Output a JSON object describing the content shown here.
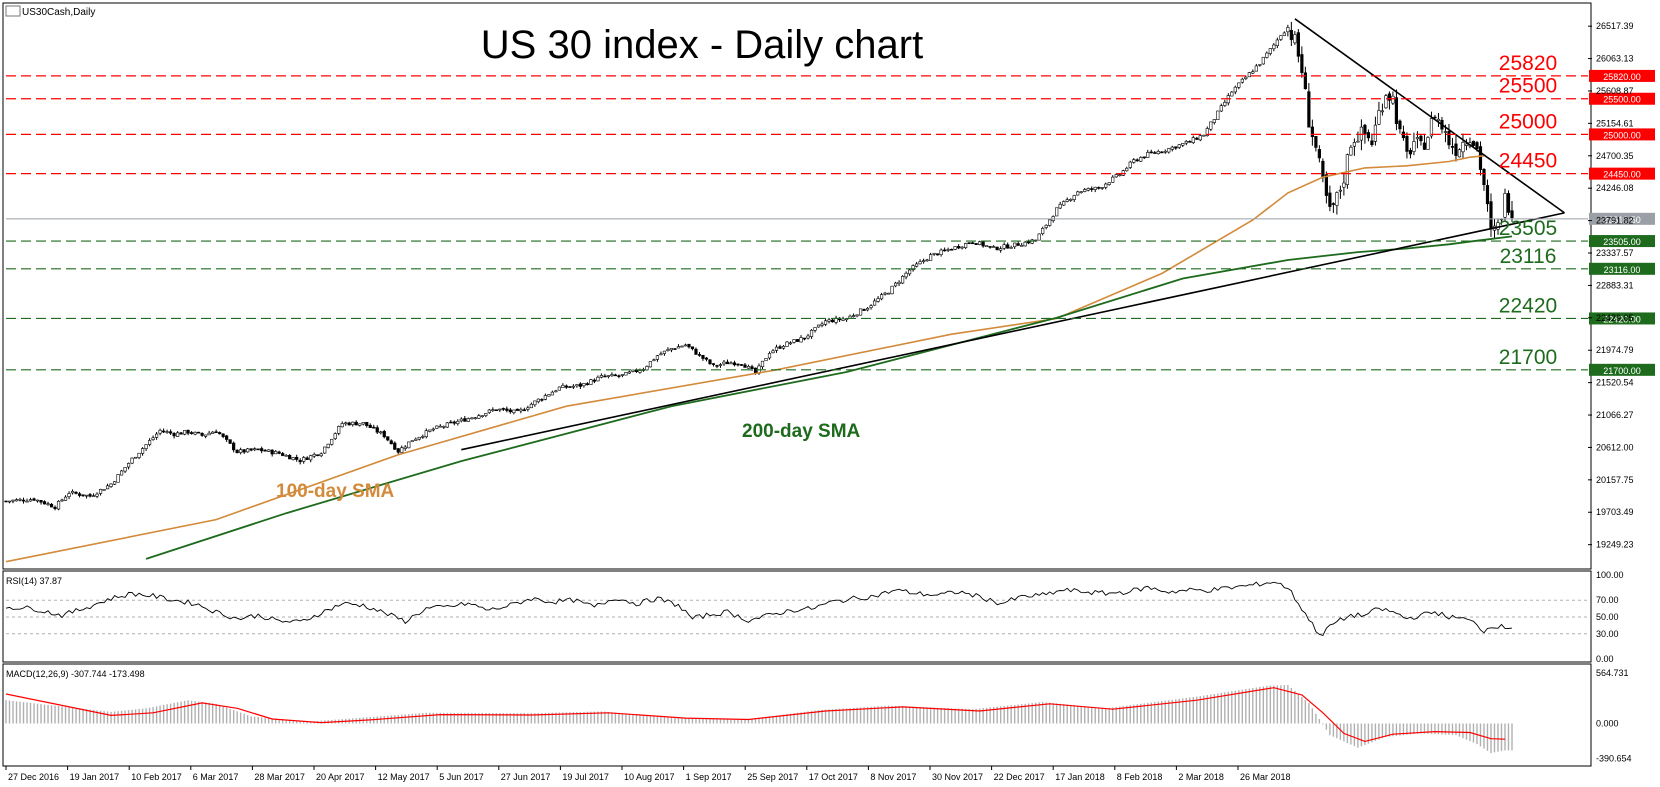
{
  "header": {
    "symbol": "US30Cash,Daily",
    "title": "US 30 index - Daily chart"
  },
  "colors": {
    "bull": "#000000",
    "bear": "#000000",
    "sma100": "#d38a3a",
    "sma200": "#1e6b1e",
    "resistance": "#ff0000",
    "support": "#1e6b1e",
    "macd_signal": "#ff0000",
    "macd_hist": "#b0b0b0"
  },
  "annotations": {
    "sma100_label": "100-day SMA",
    "sma200_label": "200-day SMA"
  },
  "chart_data": [
    {
      "type": "line",
      "name": "price",
      "ylim": [
        18950,
        26800
      ],
      "y_ticks": [
        "26517.39",
        "26063.13",
        "25608.87",
        "25154.61",
        "24700.35",
        "24246.08",
        "23791.82",
        "23337.57",
        "22883.31",
        "22429.05",
        "21974.79",
        "21520.54",
        "21066.27",
        "20612.00",
        "20157.75",
        "19703.49",
        "19249.23"
      ],
      "x_labels": [
        "27 Dec 2016",
        "19 Jan 2017",
        "10 Feb 2017",
        "6 Mar 2017",
        "28 Mar 2017",
        "20 Apr 2017",
        "12 May 2017",
        "5 Jun 2017",
        "27 Jun 2017",
        "19 Jul 2017",
        "10 Aug 2017",
        "1 Sep 2017",
        "25 Sep 2017",
        "17 Oct 2017",
        "8 Nov 2017",
        "30 Nov 2017",
        "22 Dec 2017",
        "17 Jan 2018",
        "8 Feb 2018",
        "2 Mar 2018",
        "26 Mar 2018"
      ],
      "close_path": [
        [
          0,
          19860
        ],
        [
          8,
          19890
        ],
        [
          14,
          19780
        ],
        [
          18,
          19980
        ],
        [
          24,
          19930
        ],
        [
          30,
          20100
        ],
        [
          36,
          20450
        ],
        [
          40,
          20650
        ],
        [
          44,
          20850
        ],
        [
          48,
          20800
        ],
        [
          52,
          20830
        ],
        [
          56,
          20780
        ],
        [
          60,
          20850
        ],
        [
          66,
          20550
        ],
        [
          72,
          20580
        ],
        [
          78,
          20530
        ],
        [
          84,
          20430
        ],
        [
          90,
          20550
        ],
        [
          96,
          20950
        ],
        [
          102,
          20950
        ],
        [
          108,
          20780
        ],
        [
          112,
          20560
        ],
        [
          116,
          20720
        ],
        [
          122,
          20870
        ],
        [
          128,
          20960
        ],
        [
          134,
          21050
        ],
        [
          140,
          21150
        ],
        [
          146,
          21100
        ],
        [
          152,
          21280
        ],
        [
          158,
          21450
        ],
        [
          164,
          21480
        ],
        [
          170,
          21600
        ],
        [
          176,
          21620
        ],
        [
          182,
          21720
        ],
        [
          186,
          21900
        ],
        [
          190,
          22000
        ],
        [
          194,
          22050
        ],
        [
          198,
          21900
        ],
        [
          202,
          21750
        ],
        [
          206,
          21800
        ],
        [
          210,
          21800
        ],
        [
          214,
          21650
        ],
        [
          218,
          21950
        ],
        [
          222,
          22050
        ],
        [
          228,
          22150
        ],
        [
          234,
          22380
        ],
        [
          240,
          22420
        ],
        [
          246,
          22580
        ],
        [
          252,
          22800
        ],
        [
          258,
          23100
        ],
        [
          264,
          23300
        ],
        [
          270,
          23400
        ],
        [
          276,
          23500
        ],
        [
          282,
          23400
        ],
        [
          288,
          23450
        ],
        [
          294,
          23520
        ],
        [
          300,
          23950
        ],
        [
          306,
          24200
        ],
        [
          312,
          24250
        ],
        [
          318,
          24440
        ],
        [
          322,
          24630
        ],
        [
          326,
          24720
        ],
        [
          332,
          24800
        ],
        [
          338,
          24900
        ],
        [
          342,
          25000
        ],
        [
          346,
          25300
        ],
        [
          350,
          25600
        ],
        [
          354,
          25800
        ],
        [
          358,
          26000
        ],
        [
          362,
          26250
        ],
        [
          364,
          26400
        ],
        [
          366,
          26500
        ],
        [
          368,
          26300
        ],
        [
          370,
          25900
        ],
        [
          372,
          25200
        ],
        [
          374,
          24800
        ],
        [
          376,
          24300
        ],
        [
          378,
          23900
        ],
        [
          380,
          24100
        ],
        [
          382,
          24400
        ],
        [
          384,
          24900
        ],
        [
          386,
          25000
        ],
        [
          388,
          25000
        ],
        [
          390,
          24900
        ],
        [
          392,
          25300
        ],
        [
          394,
          25600
        ],
        [
          396,
          25500
        ],
        [
          398,
          25000
        ],
        [
          400,
          24700
        ],
        [
          402,
          24900
        ],
        [
          404,
          24800
        ],
        [
          406,
          25000
        ],
        [
          408,
          25300
        ],
        [
          410,
          25100
        ],
        [
          412,
          24900
        ],
        [
          414,
          24800
        ],
        [
          416,
          24900
        ],
        [
          418,
          25000
        ],
        [
          420,
          24800
        ],
        [
          422,
          24300
        ],
        [
          424,
          23600
        ],
        [
          426,
          23700
        ],
        [
          428,
          24100
        ],
        [
          430,
          23950
        ]
      ],
      "sma100_path": [
        [
          0,
          19010
        ],
        [
          60,
          19600
        ],
        [
          112,
          20510
        ],
        [
          160,
          21190
        ],
        [
          220,
          21700
        ],
        [
          270,
          22200
        ],
        [
          300,
          22420
        ],
        [
          330,
          23050
        ],
        [
          356,
          23800
        ],
        [
          366,
          24180
        ],
        [
          376,
          24400
        ],
        [
          388,
          24530
        ],
        [
          400,
          24560
        ],
        [
          412,
          24620
        ],
        [
          418,
          24680
        ],
        [
          422,
          24700
        ]
      ],
      "sma200_path": [
        [
          40,
          19050
        ],
        [
          80,
          19690
        ],
        [
          130,
          20420
        ],
        [
          190,
          21190
        ],
        [
          240,
          21670
        ],
        [
          300,
          22430
        ],
        [
          336,
          22980
        ],
        [
          366,
          23240
        ],
        [
          386,
          23350
        ],
        [
          400,
          23400
        ],
        [
          412,
          23460
        ],
        [
          420,
          23510
        ],
        [
          430,
          23570
        ]
      ],
      "trend_support": [
        [
          130,
          20580
        ],
        [
          445,
          23900
        ]
      ],
      "trend_resistance": [
        [
          368,
          26620
        ],
        [
          445,
          23900
        ]
      ],
      "resistance_levels": [
        {
          "value": 25820,
          "label": "25820",
          "tag": "25820.00"
        },
        {
          "value": 25500,
          "label": "25500",
          "tag": "25500.00"
        },
        {
          "value": 25000,
          "label": "25000",
          "tag": "25000.00"
        },
        {
          "value": 24450,
          "label": "24450",
          "tag": "24450.00"
        }
      ],
      "support_levels": [
        {
          "value": 23505,
          "label": "23505",
          "tag": "23505.00"
        },
        {
          "value": 23116,
          "label": "23116",
          "tag": "23116.00"
        },
        {
          "value": 22420,
          "label": "22420",
          "tag": "22420.00"
        },
        {
          "value": 21700,
          "label": "21700",
          "tag": "21700.00"
        }
      ],
      "current_price": {
        "value": 23816.5,
        "tag": "23816.50"
      }
    },
    {
      "type": "line",
      "name": "RSI(14)",
      "header": "RSI(14) 37.87",
      "ylim": [
        0,
        100
      ],
      "y_ticks": [
        "100.00",
        "70.00",
        "50.00",
        "30.00",
        "0.00"
      ],
      "levels": [
        70,
        50,
        30
      ],
      "path": [
        [
          0,
          62
        ],
        [
          8,
          60
        ],
        [
          16,
          52
        ],
        [
          22,
          60
        ],
        [
          30,
          72
        ],
        [
          36,
          78
        ],
        [
          42,
          75
        ],
        [
          48,
          70
        ],
        [
          54,
          66
        ],
        [
          60,
          56
        ],
        [
          66,
          48
        ],
        [
          72,
          52
        ],
        [
          78,
          45
        ],
        [
          84,
          44
        ],
        [
          90,
          55
        ],
        [
          96,
          66
        ],
        [
          102,
          64
        ],
        [
          108,
          55
        ],
        [
          114,
          45
        ],
        [
          120,
          60
        ],
        [
          126,
          62
        ],
        [
          132,
          66
        ],
        [
          138,
          58
        ],
        [
          144,
          64
        ],
        [
          150,
          72
        ],
        [
          156,
          68
        ],
        [
          162,
          70
        ],
        [
          168,
          62
        ],
        [
          174,
          73
        ],
        [
          180,
          66
        ],
        [
          186,
          72
        ],
        [
          192,
          64
        ],
        [
          196,
          48
        ],
        [
          200,
          52
        ],
        [
          206,
          56
        ],
        [
          212,
          46
        ],
        [
          218,
          52
        ],
        [
          224,
          58
        ],
        [
          230,
          60
        ],
        [
          236,
          68
        ],
        [
          242,
          72
        ],
        [
          248,
          75
        ],
        [
          254,
          82
        ],
        [
          260,
          78
        ],
        [
          266,
          76
        ],
        [
          272,
          80
        ],
        [
          278,
          74
        ],
        [
          284,
          66
        ],
        [
          290,
          74
        ],
        [
          296,
          76
        ],
        [
          302,
          82
        ],
        [
          308,
          80
        ],
        [
          314,
          78
        ],
        [
          320,
          80
        ],
        [
          326,
          85
        ],
        [
          332,
          80
        ],
        [
          338,
          82
        ],
        [
          344,
          82
        ],
        [
          350,
          85
        ],
        [
          356,
          88
        ],
        [
          362,
          92
        ],
        [
          366,
          85
        ],
        [
          370,
          60
        ],
        [
          374,
          35
        ],
        [
          376,
          28
        ],
        [
          378,
          40
        ],
        [
          380,
          44
        ],
        [
          384,
          52
        ],
        [
          388,
          52
        ],
        [
          392,
          60
        ],
        [
          396,
          56
        ],
        [
          400,
          48
        ],
        [
          404,
          52
        ],
        [
          408,
          56
        ],
        [
          412,
          50
        ],
        [
          416,
          48
        ],
        [
          420,
          42
        ],
        [
          422,
          32
        ],
        [
          424,
          40
        ],
        [
          428,
          38
        ]
      ]
    },
    {
      "type": "bar",
      "name": "MACD(12,26,9)",
      "header": "MACD(12,26,9) -307.744 -173.498",
      "ylim": [
        -430,
        620
      ],
      "y_ticks": [
        "564.731",
        "0.000",
        "-390.654"
      ],
      "histogram_path": [
        [
          0,
          260
        ],
        [
          30,
          130
        ],
        [
          40,
          170
        ],
        [
          52,
          260
        ],
        [
          60,
          220
        ],
        [
          70,
          80
        ],
        [
          86,
          20
        ],
        [
          100,
          60
        ],
        [
          120,
          120
        ],
        [
          150,
          115
        ],
        [
          170,
          135
        ],
        [
          190,
          70
        ],
        [
          210,
          40
        ],
        [
          232,
          150
        ],
        [
          252,
          200
        ],
        [
          276,
          160
        ],
        [
          296,
          240
        ],
        [
          314,
          170
        ],
        [
          340,
          300
        ],
        [
          360,
          420
        ],
        [
          366,
          430
        ],
        [
          372,
          230
        ],
        [
          378,
          -130
        ],
        [
          386,
          -270
        ],
        [
          394,
          -150
        ],
        [
          404,
          -110
        ],
        [
          414,
          -130
        ],
        [
          420,
          -230
        ],
        [
          424,
          -330
        ],
        [
          428,
          -300
        ]
      ],
      "signal_path": [
        [
          0,
          330
        ],
        [
          30,
          90
        ],
        [
          42,
          120
        ],
        [
          56,
          230
        ],
        [
          66,
          170
        ],
        [
          76,
          50
        ],
        [
          90,
          10
        ],
        [
          104,
          40
        ],
        [
          124,
          100
        ],
        [
          150,
          95
        ],
        [
          172,
          120
        ],
        [
          194,
          60
        ],
        [
          212,
          45
        ],
        [
          234,
          140
        ],
        [
          256,
          185
        ],
        [
          278,
          140
        ],
        [
          298,
          220
        ],
        [
          316,
          160
        ],
        [
          340,
          260
        ],
        [
          362,
          400
        ],
        [
          370,
          320
        ],
        [
          376,
          120
        ],
        [
          382,
          -110
        ],
        [
          388,
          -200
        ],
        [
          396,
          -120
        ],
        [
          408,
          -90
        ],
        [
          418,
          -100
        ],
        [
          424,
          -170
        ],
        [
          428,
          -175
        ]
      ]
    }
  ]
}
